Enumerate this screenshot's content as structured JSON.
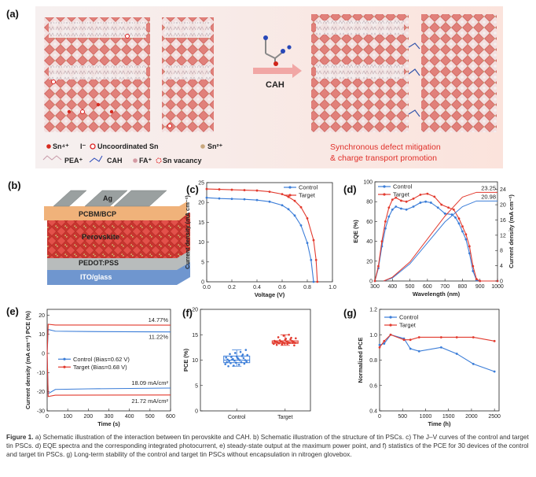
{
  "panels": {
    "a": {
      "label": "(a)",
      "reagent_label": "CAH",
      "result_text": [
        "Synchronous defect mitigation",
        "& charge transport promotion"
      ],
      "legend_line1": [
        "Sn⁴⁺",
        "I⁻",
        "Uncoordinated Sn",
        "Sn²⁺"
      ],
      "legend_line2": [
        "PEA⁺",
        "CAH",
        "FA⁺",
        "Sn vacancy"
      ]
    },
    "b": {
      "label": "(b)",
      "layers": [
        "Ag",
        "PCBM/BCP",
        "Perovskite",
        "PEDOT:PSS",
        "ITO/glass"
      ],
      "layer_colors": [
        "#9aa0a0",
        "#f0b27a",
        "#d9413a",
        "#b8bcbc",
        "#6f96cf"
      ]
    }
  },
  "colors": {
    "control": "#3b7dd8",
    "target": "#e23a2e"
  },
  "chart_data": [
    {
      "id": "c",
      "label": "(c)",
      "type": "line",
      "xlabel": "Voltage (V)",
      "ylabel": "Current density (mA cm⁻²)",
      "xlim": [
        0,
        1.0
      ],
      "ylim": [
        0,
        25
      ],
      "xticks": [
        "0.0",
        "0.2",
        "0.4",
        "0.6",
        "0.8",
        "1.0"
      ],
      "yticks": [
        "0",
        "5",
        "10",
        "15",
        "20",
        "25"
      ],
      "legend": "top-right",
      "series": [
        {
          "name": "Control",
          "points": [
            [
              0,
              21.2
            ],
            [
              0.1,
              21.0
            ],
            [
              0.2,
              20.9
            ],
            [
              0.3,
              20.8
            ],
            [
              0.4,
              20.6
            ],
            [
              0.5,
              20.2
            ],
            [
              0.6,
              19.3
            ],
            [
              0.65,
              18.3
            ],
            [
              0.7,
              16.7
            ],
            [
              0.75,
              14.2
            ],
            [
              0.8,
              9.8
            ],
            [
              0.83,
              5.5
            ],
            [
              0.85,
              0
            ]
          ]
        },
        {
          "name": "Target",
          "points": [
            [
              0,
              23.4
            ],
            [
              0.1,
              23.3
            ],
            [
              0.2,
              23.2
            ],
            [
              0.3,
              23.1
            ],
            [
              0.4,
              23.0
            ],
            [
              0.5,
              22.7
            ],
            [
              0.6,
              22.1
            ],
            [
              0.65,
              21.4
            ],
            [
              0.7,
              20.4
            ],
            [
              0.75,
              18.8
            ],
            [
              0.8,
              16.0
            ],
            [
              0.85,
              10.5
            ],
            [
              0.87,
              5.5
            ],
            [
              0.88,
              0
            ]
          ]
        }
      ]
    },
    {
      "id": "d",
      "label": "(d)",
      "type": "line",
      "xlabel": "Wavelength (nm)",
      "ylabel": "EQE (%)",
      "ylabel_right": "Current density (mA cm⁻²)",
      "xlim": [
        300,
        1000
      ],
      "ylim": [
        0,
        100
      ],
      "ylim_right": [
        0,
        26
      ],
      "xticks": [
        "300",
        "400",
        "500",
        "600",
        "700",
        "800",
        "900",
        "1000"
      ],
      "yticks": [
        "0",
        "20",
        "40",
        "60",
        "80",
        "100"
      ],
      "yticks_right": [
        "0",
        "4",
        "8",
        "12",
        "16",
        "20",
        "24"
      ],
      "legend": "top-left",
      "series": [
        {
          "name": "Control",
          "points": [
            [
              300,
              0
            ],
            [
              320,
              13
            ],
            [
              340,
              35
            ],
            [
              360,
              53
            ],
            [
              380,
              65
            ],
            [
              400,
              72
            ],
            [
              420,
              75
            ],
            [
              450,
              73
            ],
            [
              480,
              72
            ],
            [
              520,
              75
            ],
            [
              560,
              79
            ],
            [
              590,
              80
            ],
            [
              620,
              79
            ],
            [
              660,
              74
            ],
            [
              700,
              68
            ],
            [
              740,
              67
            ],
            [
              760,
              64
            ],
            [
              780,
              58
            ],
            [
              800,
              50
            ],
            [
              820,
              42
            ],
            [
              840,
              28
            ],
            [
              860,
              10
            ],
            [
              880,
              1
            ],
            [
              900,
              0
            ],
            [
              1000,
              0
            ]
          ]
        },
        {
          "name": "Target",
          "points": [
            [
              300,
              0
            ],
            [
              320,
              15
            ],
            [
              340,
              40
            ],
            [
              360,
              60
            ],
            [
              380,
              74
            ],
            [
              400,
              82
            ],
            [
              420,
              84
            ],
            [
              450,
              81
            ],
            [
              480,
              80
            ],
            [
              520,
              83
            ],
            [
              560,
              87
            ],
            [
              600,
              88
            ],
            [
              640,
              85
            ],
            [
              680,
              77
            ],
            [
              720,
              74
            ],
            [
              750,
              72
            ],
            [
              780,
              63
            ],
            [
              800,
              55
            ],
            [
              820,
              47
            ],
            [
              840,
              35
            ],
            [
              860,
              15
            ],
            [
              880,
              2
            ],
            [
              900,
              0
            ],
            [
              1000,
              0
            ]
          ]
        }
      ],
      "integrated": [
        {
          "name": "Control",
          "value_label": "20.98",
          "points": [
            [
              350,
              0
            ],
            [
              400,
              0.8
            ],
            [
              500,
              4.5
            ],
            [
              600,
              10
            ],
            [
              700,
              15.5
            ],
            [
              800,
              19.5
            ],
            [
              880,
              20.98
            ],
            [
              1000,
              20.98
            ]
          ]
        },
        {
          "name": "Target",
          "value_label": "23.25",
          "points": [
            [
              350,
              0
            ],
            [
              400,
              1
            ],
            [
              500,
              5
            ],
            [
              600,
              11
            ],
            [
              700,
              17
            ],
            [
              800,
              22
            ],
            [
              880,
              23.25
            ],
            [
              1000,
              23.25
            ]
          ]
        }
      ]
    },
    {
      "id": "e",
      "label": "(e)",
      "type": "line",
      "xlabel": "Time (s)",
      "ylabel": "Current density (mA cm⁻²) PCE (%)",
      "xlim": [
        0,
        600
      ],
      "ylim": [
        -30,
        23
      ],
      "xticks": [
        "0",
        "100",
        "200",
        "300",
        "400",
        "500",
        "600"
      ],
      "yticks": [
        "-30",
        "-20",
        "-10",
        "0",
        "10",
        "20"
      ],
      "legend": "center-left",
      "series": [
        {
          "name": "Control (Bias=0.62 V)",
          "pce": [
            [
              0,
              0
            ],
            [
              5,
              12.5
            ],
            [
              40,
              11.6
            ],
            [
              200,
              11.4
            ],
            [
              600,
              11.22
            ]
          ],
          "current": [
            [
              0,
              0
            ],
            [
              5,
              -21
            ],
            [
              40,
              -18.8
            ],
            [
              200,
              -18.5
            ],
            [
              600,
              -18.09
            ]
          ],
          "pce_label": "11.22%",
          "current_label": "18.09 mA/cm²"
        },
        {
          "name": "Target (Bias=0.68 V)",
          "pce": [
            [
              0,
              0
            ],
            [
              5,
              15.2
            ],
            [
              40,
              14.8
            ],
            [
              600,
              14.77
            ]
          ],
          "current": [
            [
              0,
              0
            ],
            [
              5,
              -22.5
            ],
            [
              40,
              -21.8
            ],
            [
              600,
              -21.72
            ]
          ],
          "pce_label": "14.77%",
          "current_label": "21.72 mA/cm²"
        }
      ]
    },
    {
      "id": "f",
      "label": "(f)",
      "type": "box",
      "xlabel": "",
      "ylabel": "PCE (%)",
      "ylim": [
        0,
        20
      ],
      "yticks": [
        "0",
        "5",
        "10",
        "15",
        "20"
      ],
      "categories": [
        "Control",
        "Target"
      ],
      "boxes": [
        {
          "q1": 9.5,
          "median": 10.0,
          "q3": 10.8,
          "min": 8.8,
          "max": 12.0,
          "values": [
            9.2,
            9.4,
            9.5,
            9.6,
            9.7,
            9.8,
            9.9,
            10.0,
            10.0,
            10.1,
            10.2,
            10.3,
            10.4,
            10.5,
            10.6,
            10.7,
            10.8,
            11.0,
            11.2,
            11.4,
            11.6,
            12.0,
            8.8,
            8.9,
            9.1,
            9.3,
            9.6,
            10.1,
            10.4,
            11.1
          ]
        },
        {
          "q1": 13.3,
          "median": 13.5,
          "q3": 13.8,
          "min": 12.9,
          "max": 15.0,
          "values": [
            13.2,
            13.3,
            13.3,
            13.4,
            13.4,
            13.5,
            13.5,
            13.5,
            13.6,
            13.6,
            13.7,
            13.7,
            13.8,
            13.8,
            13.9,
            14.0,
            14.1,
            14.3,
            14.5,
            14.8,
            15.0,
            12.9,
            13.0,
            13.1,
            13.2,
            13.4,
            13.6,
            13.7,
            14.2,
            14.4
          ]
        }
      ]
    },
    {
      "id": "g",
      "label": "(g)",
      "type": "line",
      "xlabel": "Time (h)",
      "ylabel": "Normalized PCE",
      "xlim": [
        0,
        2600
      ],
      "ylim": [
        0.4,
        1.2
      ],
      "xticks": [
        "0",
        "500",
        "1000",
        "1500",
        "2000",
        "2500"
      ],
      "yticks": [
        "0.4",
        "0.6",
        "0.8",
        "1.0",
        "1.2"
      ],
      "legend": "top-left",
      "series": [
        {
          "name": "Control",
          "points": [
            [
              0,
              0.92
            ],
            [
              100,
              0.93
            ],
            [
              240,
              1.0
            ],
            [
              530,
              0.97
            ],
            [
              670,
              0.89
            ],
            [
              860,
              0.87
            ],
            [
              1340,
              0.9
            ],
            [
              1680,
              0.85
            ],
            [
              2040,
              0.77
            ],
            [
              2500,
              0.71
            ]
          ]
        },
        {
          "name": "Target",
          "points": [
            [
              0,
              0.9
            ],
            [
              100,
              0.95
            ],
            [
              240,
              1.0
            ],
            [
              530,
              0.96
            ],
            [
              670,
              0.96
            ],
            [
              860,
              0.98
            ],
            [
              1340,
              0.98
            ],
            [
              1680,
              0.98
            ],
            [
              2040,
              0.98
            ],
            [
              2500,
              0.95
            ]
          ]
        }
      ]
    }
  ],
  "caption": {
    "prefix": "Figure 1.",
    "text": " a) Schematic illustration of the interaction between tin perovskite and CAH. b) Schematic illustration of the structure of tin PSCs. c) The J–V curves of the control and target tin PSCs. d) EQE spectra and the corresponding integrated photocurrent, e) steady-state output at the maximum power point, and f) statistics of the PCE for 30 devices of the control and target tin PSCs. g) Long-term stability of the control and target tin PSCs without encapsulation in nitrogen glovebox."
  }
}
